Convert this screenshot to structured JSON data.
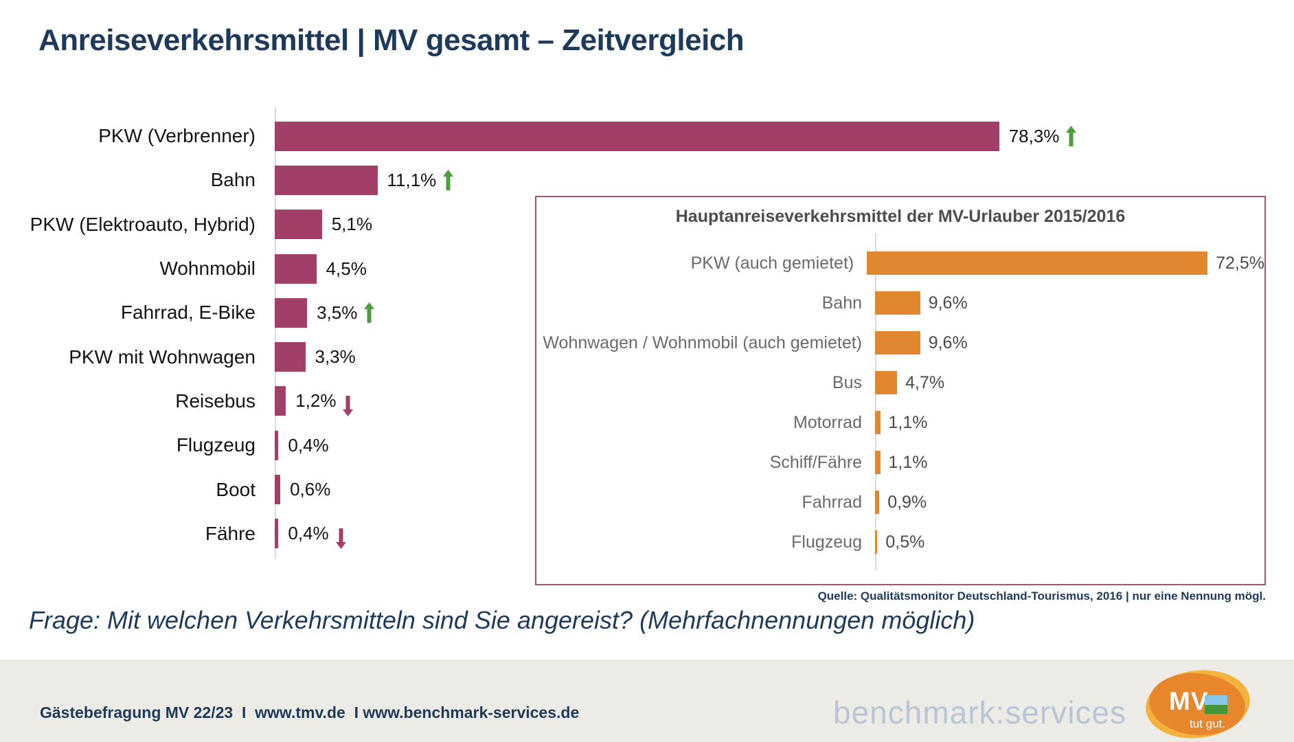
{
  "title": "Anreiseverkehrsmittel | MV gesamt – Zeitvergleich",
  "question": "Frage: Mit welchen Verkehrsmitteln sind Sie angereist? (Mehrfachnennungen möglich)",
  "colors": {
    "main_bar": "#A23F68",
    "inset_bar": "#E0872F",
    "up_arrow": "#4F9C40",
    "down_arrow": "#A23F68",
    "title_text": "#1E3A5A",
    "inset_border": "#A9536E",
    "footer_bg": "#ECEBE6",
    "watermark": "#B9C5D6",
    "logo_outer": "#F5B23C",
    "logo_inner": "#E8862C",
    "flag_sky": "#8AC6E8",
    "flag_land": "#45943C"
  },
  "chart_data": [
    {
      "type": "bar",
      "orientation": "horizontal",
      "title": "Anreiseverkehrsmittel | MV gesamt – Zeitvergleich",
      "unit": "%",
      "xlim": [
        0,
        100
      ],
      "grid": false,
      "categories": [
        "PKW (Verbrenner)",
        "Bahn",
        "PKW (Elektroauto, Hybrid)",
        "Wohnmobil",
        "Fahrrad, E-Bike",
        "PKW mit Wohnwagen",
        "Reisebus",
        "Flugzeug",
        "Boot",
        "Fähre"
      ],
      "values": [
        78.3,
        11.1,
        5.1,
        4.5,
        3.5,
        3.3,
        1.2,
        0.4,
        0.6,
        0.4
      ],
      "value_labels": [
        "78,3%",
        "11,1%",
        "5,1%",
        "4,5%",
        "3,5%",
        "3,3%",
        "1,2%",
        "0,4%",
        "0,6%",
        "0,4%"
      ],
      "trends": [
        "up",
        "up",
        null,
        null,
        "up",
        null,
        "down",
        null,
        null,
        "down"
      ]
    },
    {
      "type": "bar",
      "orientation": "horizontal",
      "title": "Hauptanreiseverkehrsmittel der MV-Urlauber 2015/2016",
      "unit": "%",
      "xlim": [
        0,
        80
      ],
      "grid": false,
      "categories": [
        "PKW (auch gemietet)",
        "Bahn",
        "Wohnwagen / Wohnmobil (auch gemietet)",
        "Bus",
        "Motorrad",
        "Schiff/Fähre",
        "Fahrrad",
        "Flugzeug"
      ],
      "values": [
        72.5,
        9.6,
        9.6,
        4.7,
        1.1,
        1.1,
        0.9,
        0.5
      ],
      "value_labels": [
        "72,5%",
        "9,6%",
        "9,6%",
        "4,7%",
        "1,1%",
        "1,1%",
        "0,9%",
        "0,5%"
      ],
      "source": "Quelle: Qualitätsmonitor Deutschland-Tourismus, 2016 | nur eine Nennung mögl."
    }
  ],
  "footer": {
    "left_text": "Gästebefragung MV 22/23  I  www.tmv.de  I www.benchmark-services.de",
    "watermark": "benchmark:services",
    "logo": {
      "line1": "MV",
      "line2": "tut gut."
    }
  }
}
